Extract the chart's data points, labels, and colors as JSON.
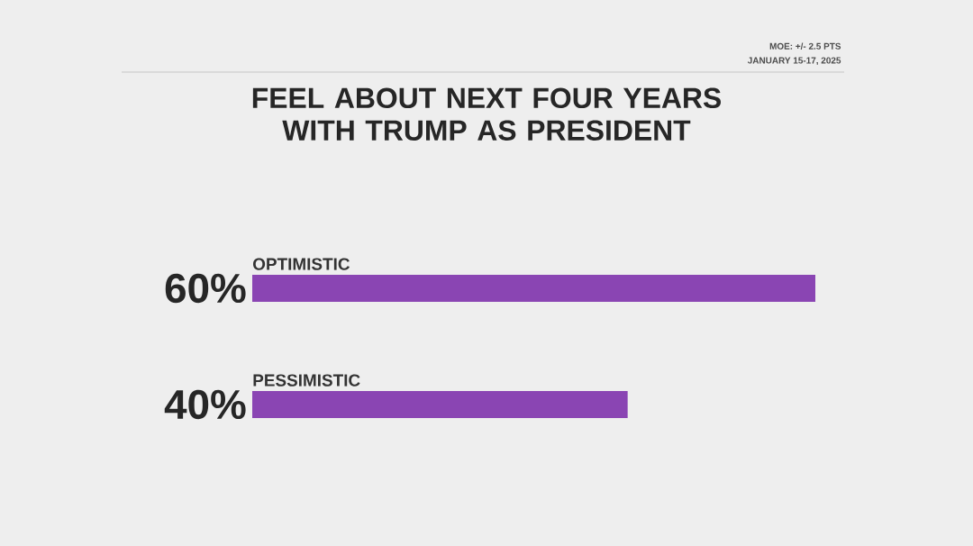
{
  "chart_data": {
    "type": "bar",
    "orientation": "horizontal",
    "title": "FEEL ABOUT NEXT FOUR YEARS WITH TRUMP AS PRESIDENT",
    "categories": [
      "OPTIMISTIC",
      "PESSIMISTIC"
    ],
    "values": [
      60,
      40
    ],
    "value_labels": [
      "60%",
      "40%"
    ],
    "color": "#8a45b3",
    "xlim": [
      0,
      60
    ],
    "annotations": [
      "MOE: +/- 2.5 PTS",
      "JANUARY 15-17, 2025"
    ]
  }
}
